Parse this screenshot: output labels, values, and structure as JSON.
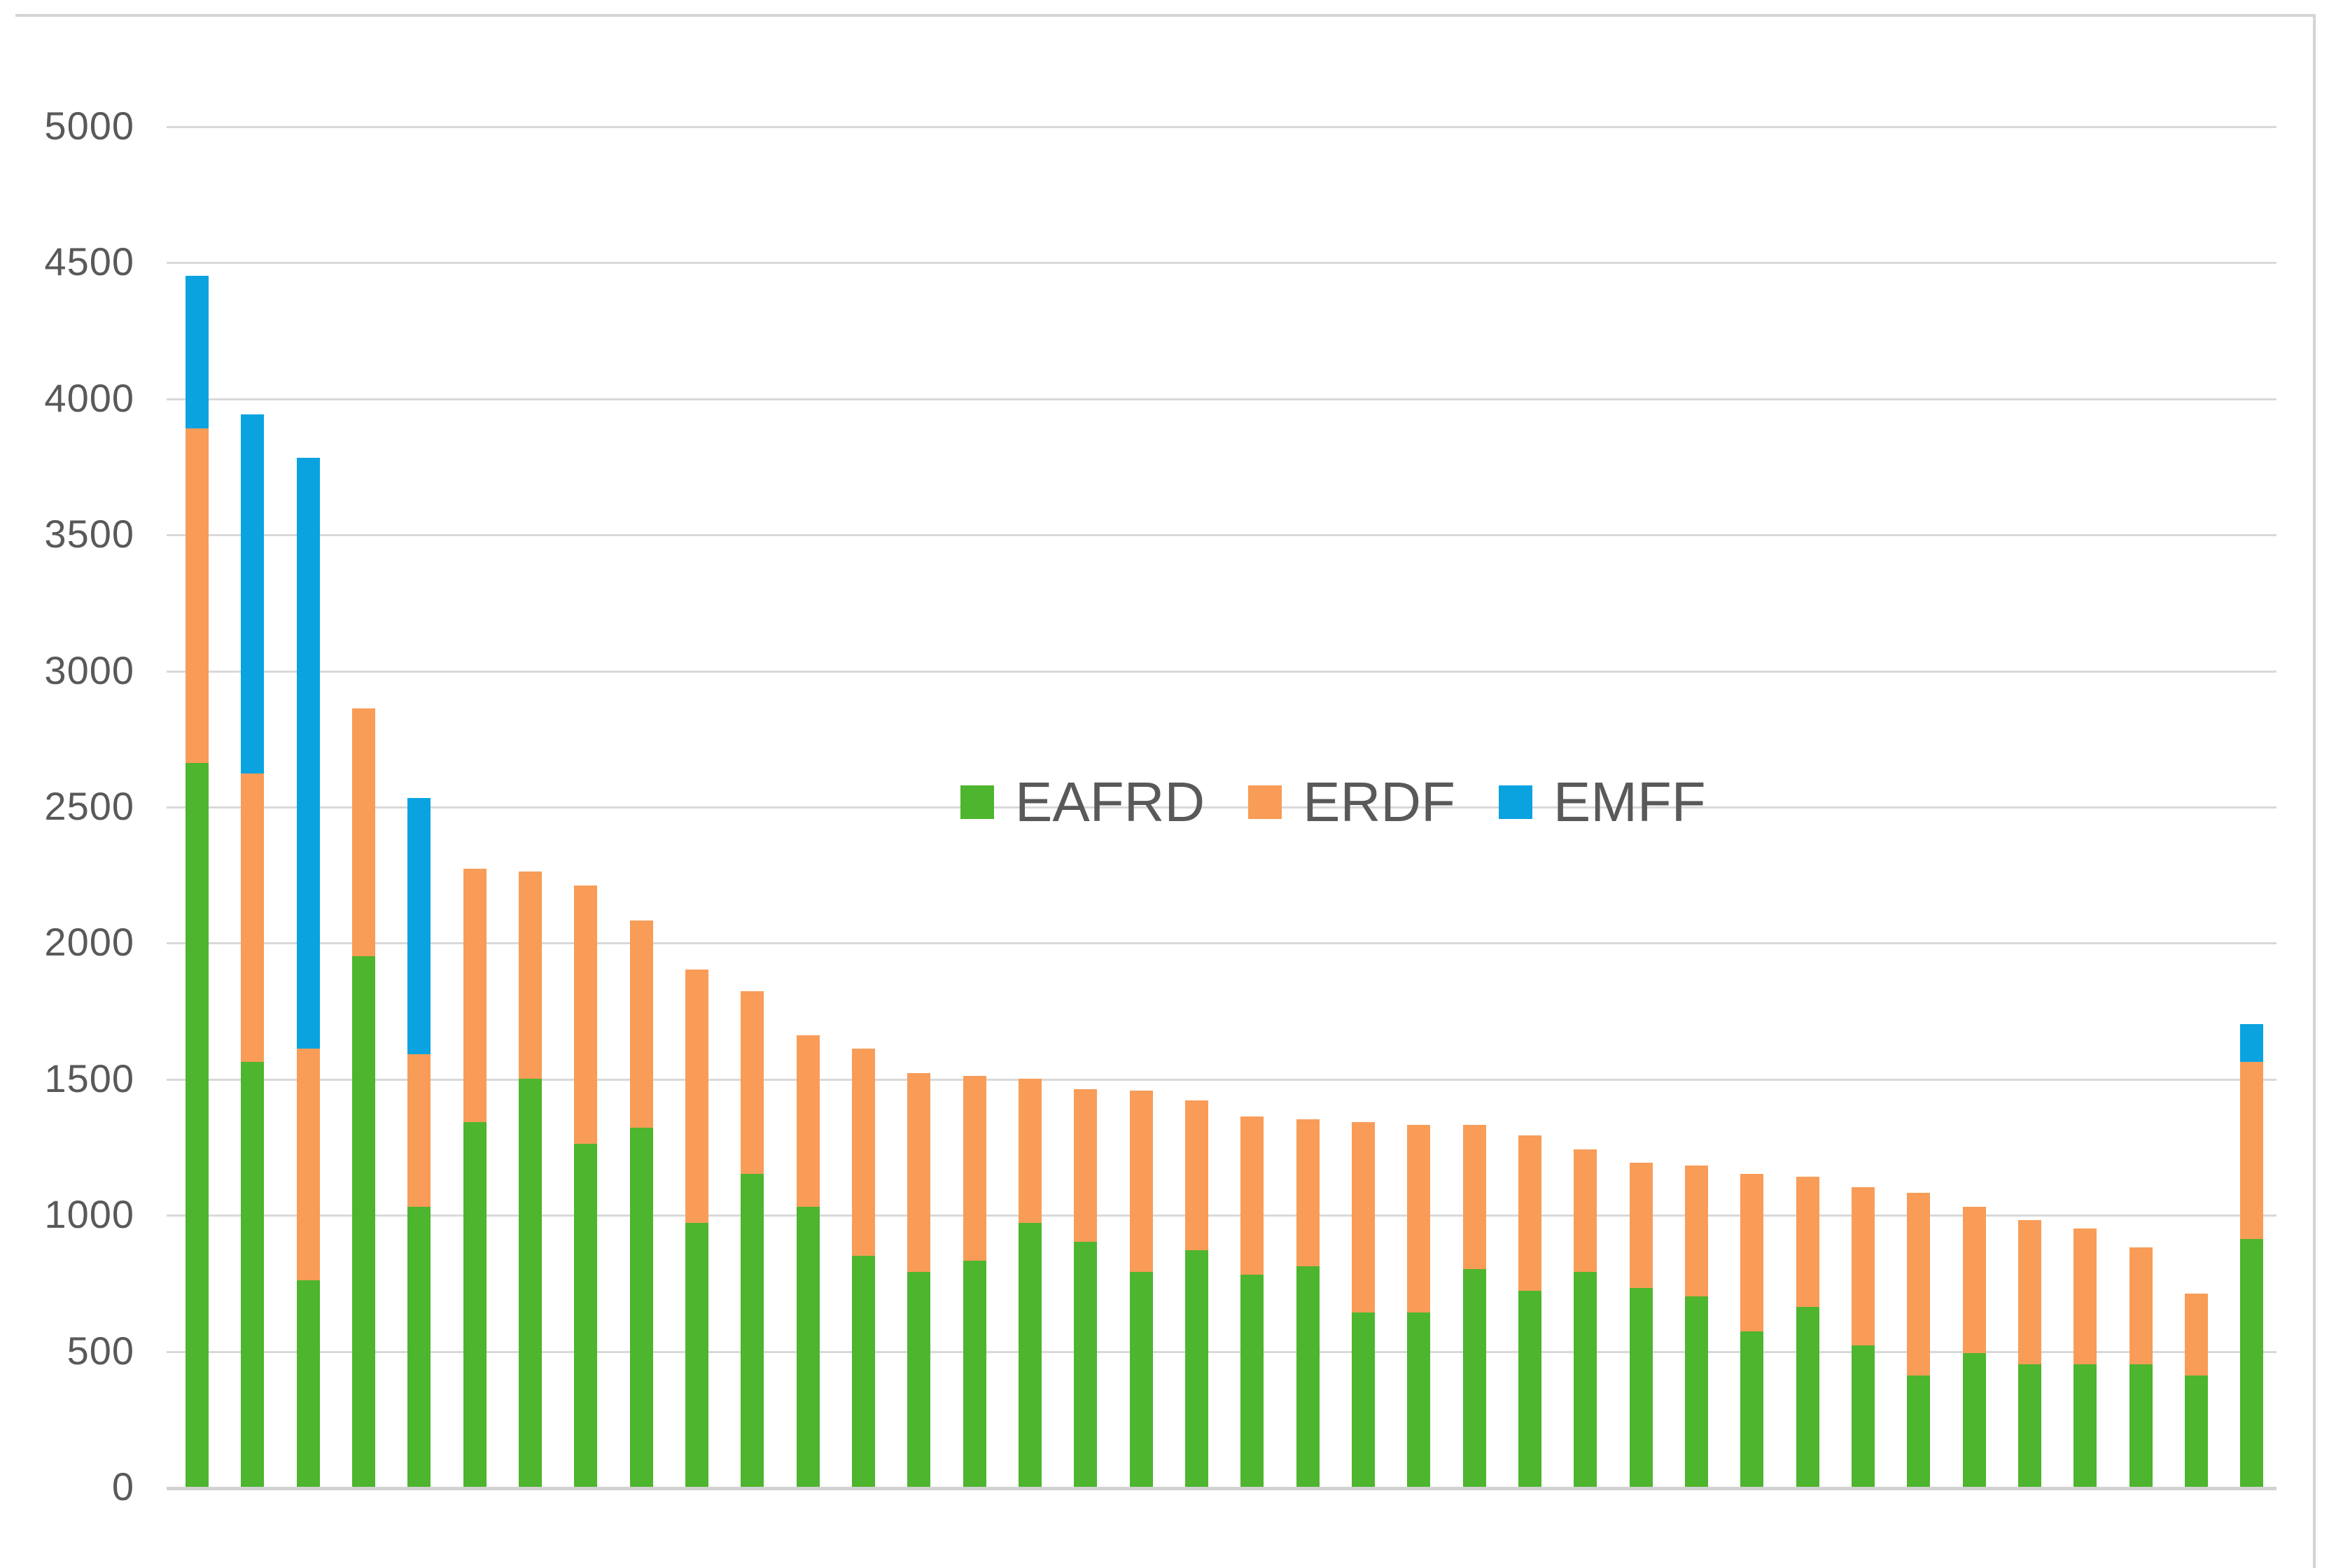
{
  "chart_data": {
    "type": "bar",
    "stacked": true,
    "title": "",
    "xlabel": "",
    "ylabel": "",
    "x_axis": {
      "labels_visible": false,
      "bar_count": 38
    },
    "y_axis": {
      "min": 0,
      "max": 5000,
      "step": 500,
      "ticks": [
        0,
        500,
        1000,
        1500,
        2000,
        2500,
        3000,
        3500,
        4000,
        4500,
        5000
      ]
    },
    "grid": true,
    "legend_position": "center",
    "series": [
      {
        "name": "EAFRD",
        "color": "#4db52e",
        "values": [
          2660,
          1560,
          760,
          1950,
          1030,
          1340,
          1500,
          1260,
          1320,
          970,
          1150,
          1030,
          850,
          790,
          830,
          970,
          900,
          790,
          870,
          780,
          810,
          640,
          640,
          800,
          720,
          790,
          730,
          700,
          570,
          660,
          520,
          410,
          490,
          450,
          450,
          450,
          410,
          910
        ]
      },
      {
        "name": "ERDF",
        "color": "#f89c58",
        "values": [
          1230,
          1060,
          850,
          910,
          560,
          930,
          760,
          950,
          760,
          930,
          670,
          630,
          760,
          730,
          680,
          530,
          560,
          665,
          550,
          580,
          540,
          700,
          690,
          530,
          570,
          450,
          460,
          480,
          580,
          480,
          580,
          670,
          540,
          530,
          500,
          430,
          300,
          650
        ]
      },
      {
        "name": "EMFF",
        "color": "#0aa3e0",
        "values": [
          560,
          1320,
          2170,
          0,
          940,
          0,
          0,
          0,
          0,
          0,
          0,
          0,
          0,
          0,
          0,
          0,
          0,
          0,
          0,
          0,
          0,
          0,
          0,
          0,
          0,
          0,
          0,
          0,
          0,
          0,
          0,
          0,
          0,
          0,
          0,
          0,
          0,
          140
        ]
      }
    ]
  },
  "legend": {
    "items": [
      {
        "label": "EAFRD",
        "color": "#4db52e"
      },
      {
        "label": "ERDF",
        "color": "#f89c58"
      },
      {
        "label": "EMFF",
        "color": "#0aa3e0"
      }
    ]
  },
  "colors": {
    "gridline": "#d9d9d9",
    "axis_baseline": "#d2d2d2",
    "frame_border": "#d5d5d5",
    "tick_text": "#595959",
    "legend_text": "#595959",
    "background": "#ffffff"
  }
}
